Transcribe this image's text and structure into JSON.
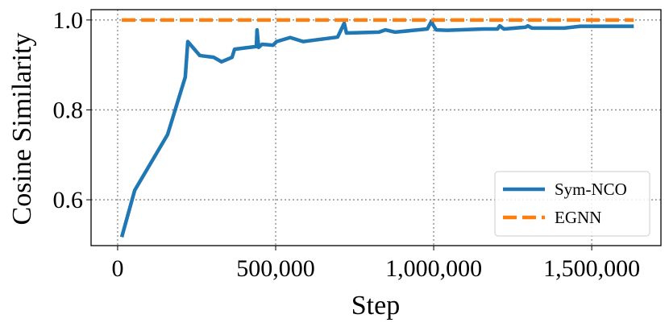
{
  "chart_data": {
    "type": "line",
    "xlabel": "Step",
    "ylabel": "Cosine Similarity",
    "xlim": [
      -84000,
      1719000
    ],
    "ylim": [
      0.498,
      1.023
    ],
    "xticks": [
      0,
      {
        "value": 500000,
        "label": "500,000"
      },
      {
        "value": 1000000,
        "label": "1,000,000"
      },
      {
        "value": 1500000,
        "label": "1,500,000"
      }
    ],
    "yticks": [
      0.6,
      0.8,
      {
        "value": 1.0,
        "label": "1.0"
      }
    ],
    "grid": true,
    "legend": "lower right",
    "series": [
      {
        "name": "Sym-NCO",
        "color": "#1f77b4",
        "style": "solid",
        "x": [
          13000,
          54000,
          158000,
          214000,
          222000,
          260000,
          304000,
          329000,
          362000,
          370000,
          439000,
          441000,
          446000,
          457000,
          492000,
          503000,
          546000,
          587000,
          696000,
          717000,
          724000,
          827000,
          847000,
          878000,
          980000,
          992000,
          1008000,
          1043000,
          1158000,
          1202000,
          1209000,
          1222000,
          1291000,
          1298000,
          1311000,
          1413000,
          1464000,
          1633000
        ],
        "values": [
          0.517,
          0.621,
          0.745,
          0.873,
          0.952,
          0.921,
          0.917,
          0.907,
          0.917,
          0.935,
          0.941,
          0.978,
          0.939,
          0.946,
          0.944,
          0.952,
          0.961,
          0.952,
          0.962,
          0.993,
          0.971,
          0.973,
          0.978,
          0.973,
          0.98,
          0.996,
          0.978,
          0.977,
          0.98,
          0.98,
          0.987,
          0.98,
          0.984,
          0.987,
          0.982,
          0.982,
          0.986,
          0.986
        ]
      },
      {
        "name": "EGNN",
        "color": "#ff7f0e",
        "style": "dashed",
        "x": [
          13000,
          1633000
        ],
        "values": [
          1.0,
          1.0
        ]
      }
    ]
  }
}
